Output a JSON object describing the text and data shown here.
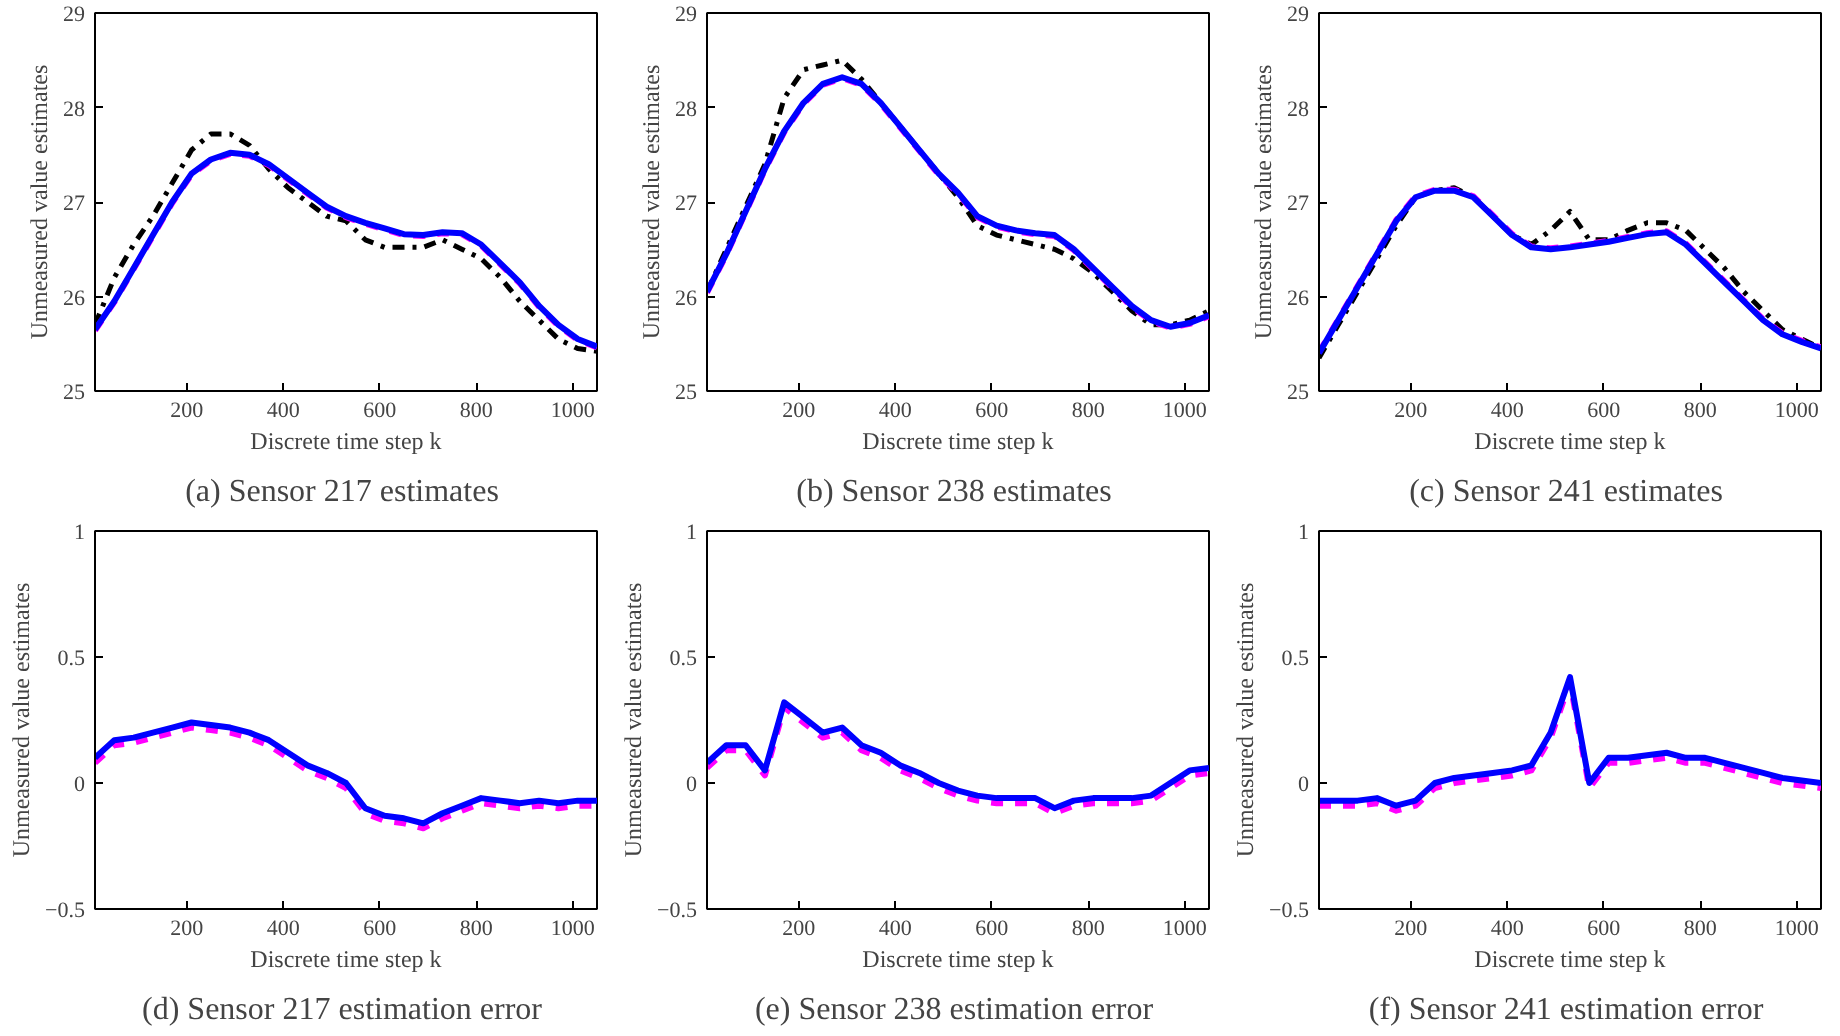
{
  "chart_data": [
    {
      "type": "line",
      "title": "(a)  Sensor 217 estimates",
      "xlabel": "Discrete time step k",
      "ylabel": "Unmeasured value estimates",
      "x": [
        10,
        50,
        90,
        130,
        170,
        210,
        250,
        290,
        330,
        370,
        410,
        450,
        490,
        530,
        570,
        610,
        650,
        690,
        730,
        770,
        810,
        850,
        890,
        930,
        970,
        1010,
        1050
      ],
      "xlim": [
        10,
        1050
      ],
      "xticks": [
        200,
        400,
        600,
        800,
        1000
      ],
      "ylim": [
        25,
        29
      ],
      "yticks": [
        25,
        26,
        27,
        28,
        29
      ],
      "grid": false,
      "series": [
        {
          "color": "#000000",
          "line_style": "dashdot",
          "values": [
            25.7,
            26.2,
            26.55,
            26.85,
            27.2,
            27.55,
            27.72,
            27.72,
            27.6,
            27.35,
            27.15,
            27.0,
            26.85,
            26.8,
            26.6,
            26.52,
            26.52,
            26.52,
            26.6,
            26.5,
            26.4,
            26.2,
            25.95,
            25.75,
            25.55,
            25.45,
            25.42
          ]
        },
        {
          "color": "#ff00ff",
          "line_style": "dashed",
          "values": [
            25.64,
            25.94,
            26.29,
            26.64,
            26.99,
            27.29,
            27.44,
            27.51,
            27.49,
            27.39,
            27.24,
            27.09,
            26.94,
            26.84,
            26.77,
            26.71,
            26.65,
            26.64,
            26.67,
            26.66,
            26.54,
            26.34,
            26.14,
            25.89,
            25.69,
            25.54,
            25.46
          ]
        },
        {
          "color": "#0000ff",
          "line_style": "solid",
          "values": [
            25.65,
            25.95,
            26.3,
            26.65,
            27.0,
            27.3,
            27.45,
            27.52,
            27.5,
            27.4,
            27.25,
            27.1,
            26.95,
            26.85,
            26.78,
            26.72,
            26.66,
            26.65,
            26.68,
            26.67,
            26.55,
            26.35,
            26.15,
            25.9,
            25.7,
            25.55,
            25.47
          ]
        }
      ]
    },
    {
      "type": "line",
      "title": "(b)  Sensor 238 estimates",
      "xlabel": "Discrete time step k",
      "ylabel": "Unmeasured value estimates",
      "x": [
        10,
        50,
        90,
        130,
        170,
        210,
        250,
        290,
        330,
        370,
        410,
        450,
        490,
        530,
        570,
        610,
        650,
        690,
        730,
        770,
        810,
        850,
        890,
        930,
        970,
        1010,
        1050
      ],
      "xlim": [
        10,
        1050
      ],
      "xticks": [
        200,
        400,
        600,
        800,
        1000
      ],
      "ylim": [
        25,
        29
      ],
      "yticks": [
        25,
        26,
        27,
        28,
        29
      ],
      "grid": false,
      "series": [
        {
          "color": "#000000",
          "line_style": "dashdot",
          "values": [
            26.05,
            26.5,
            26.95,
            27.4,
            28.1,
            28.4,
            28.45,
            28.5,
            28.3,
            28.05,
            27.8,
            27.55,
            27.3,
            27.05,
            26.75,
            26.65,
            26.6,
            26.55,
            26.5,
            26.4,
            26.25,
            26.05,
            25.85,
            25.7,
            25.7,
            25.75,
            25.85
          ]
        },
        {
          "color": "#ff00ff",
          "line_style": "dashed",
          "values": [
            26.04,
            26.44,
            26.89,
            27.34,
            27.74,
            28.04,
            28.24,
            28.31,
            28.24,
            28.04,
            27.79,
            27.54,
            27.29,
            27.09,
            26.84,
            26.74,
            26.69,
            26.66,
            26.64,
            26.49,
            26.29,
            26.09,
            25.89,
            25.74,
            25.67,
            25.71,
            25.79
          ]
        },
        {
          "color": "#0000ff",
          "line_style": "solid",
          "values": [
            26.05,
            26.45,
            26.9,
            27.35,
            27.75,
            28.05,
            28.25,
            28.32,
            28.25,
            28.05,
            27.8,
            27.55,
            27.3,
            27.1,
            26.85,
            26.75,
            26.7,
            26.67,
            26.65,
            26.5,
            26.3,
            26.1,
            25.9,
            25.75,
            25.68,
            25.72,
            25.8
          ]
        }
      ]
    },
    {
      "type": "line",
      "title": "(c)  Sensor 241 estimates",
      "xlabel": "Discrete time step k",
      "ylabel": "Unmeasured value estimates",
      "x": [
        10,
        50,
        90,
        130,
        170,
        210,
        250,
        290,
        330,
        370,
        410,
        450,
        490,
        530,
        570,
        610,
        650,
        690,
        730,
        770,
        810,
        850,
        890,
        930,
        970,
        1010,
        1050
      ],
      "xlim": [
        10,
        1050
      ],
      "xticks": [
        200,
        400,
        600,
        800,
        1000
      ],
      "ylim": [
        25,
        29
      ],
      "yticks": [
        25,
        26,
        27,
        28,
        29
      ],
      "grid": false,
      "series": [
        {
          "color": "#000000",
          "line_style": "dashdot",
          "values": [
            25.35,
            25.7,
            26.05,
            26.4,
            26.75,
            27.05,
            27.12,
            27.15,
            27.05,
            26.85,
            26.65,
            26.55,
            26.7,
            26.9,
            26.6,
            26.6,
            26.7,
            26.78,
            26.78,
            26.7,
            26.5,
            26.3,
            26.05,
            25.85,
            25.65,
            25.55,
            25.45
          ]
        },
        {
          "color": "#ff00ff",
          "line_style": "dashed",
          "values": [
            25.41,
            25.76,
            26.11,
            26.46,
            26.81,
            27.06,
            27.13,
            27.13,
            27.06,
            26.86,
            26.66,
            26.53,
            26.51,
            26.53,
            26.56,
            26.59,
            26.63,
            26.67,
            26.69,
            26.56,
            26.36,
            26.16,
            25.96,
            25.76,
            25.61,
            25.53,
            25.46
          ]
        },
        {
          "color": "#0000ff",
          "line_style": "solid",
          "values": [
            25.4,
            25.75,
            26.1,
            26.45,
            26.8,
            27.05,
            27.12,
            27.12,
            27.05,
            26.85,
            26.65,
            26.52,
            26.5,
            26.52,
            26.55,
            26.58,
            26.62,
            26.66,
            26.68,
            26.55,
            26.35,
            26.15,
            25.95,
            25.75,
            25.6,
            25.52,
            25.45
          ]
        }
      ]
    },
    {
      "type": "line",
      "title": "(d)  Sensor 217 estimation error",
      "xlabel": "Discrete time step k",
      "ylabel": "Unmeasured value estimates",
      "x": [
        10,
        50,
        90,
        130,
        170,
        210,
        250,
        290,
        330,
        370,
        410,
        450,
        490,
        530,
        570,
        610,
        650,
        690,
        730,
        770,
        810,
        850,
        890,
        930,
        970,
        1010,
        1050
      ],
      "xlim": [
        10,
        1050
      ],
      "xticks": [
        200,
        400,
        600,
        800,
        1000
      ],
      "ylim": [
        -0.5,
        1
      ],
      "yticks": [
        -0.5,
        0,
        0.5,
        1
      ],
      "grid": false,
      "series": [
        {
          "color": "#ff00ff",
          "line_style": "dashed",
          "values": [
            0.08,
            0.15,
            0.16,
            0.18,
            0.2,
            0.22,
            0.21,
            0.2,
            0.18,
            0.15,
            0.1,
            0.05,
            0.02,
            -0.02,
            -0.12,
            -0.15,
            -0.16,
            -0.18,
            -0.14,
            -0.11,
            -0.08,
            -0.09,
            -0.1,
            -0.09,
            -0.1,
            -0.09,
            -0.09
          ]
        },
        {
          "color": "#0000ff",
          "line_style": "solid",
          "values": [
            0.1,
            0.17,
            0.18,
            0.2,
            0.22,
            0.24,
            0.23,
            0.22,
            0.2,
            0.17,
            0.12,
            0.07,
            0.04,
            0.0,
            -0.1,
            -0.13,
            -0.14,
            -0.16,
            -0.12,
            -0.09,
            -0.06,
            -0.07,
            -0.08,
            -0.07,
            -0.08,
            -0.07,
            -0.07
          ]
        }
      ]
    },
    {
      "type": "line",
      "title": "(e)  Sensor 238 estimation error",
      "xlabel": "Discrete time step k",
      "ylabel": "Unmeasured value estimates",
      "x": [
        10,
        50,
        90,
        130,
        170,
        210,
        250,
        290,
        330,
        370,
        410,
        450,
        490,
        530,
        570,
        610,
        650,
        690,
        730,
        770,
        810,
        850,
        890,
        930,
        970,
        1010,
        1050
      ],
      "xlim": [
        10,
        1050
      ],
      "xticks": [
        200,
        400,
        600,
        800,
        1000
      ],
      "ylim": [
        -0.5,
        1
      ],
      "yticks": [
        -0.5,
        0,
        0.5,
        1
      ],
      "grid": false,
      "series": [
        {
          "color": "#ff00ff",
          "line_style": "dashed",
          "values": [
            0.06,
            0.13,
            0.13,
            0.03,
            0.3,
            0.24,
            0.18,
            0.2,
            0.13,
            0.1,
            0.05,
            0.02,
            -0.02,
            -0.05,
            -0.07,
            -0.08,
            -0.08,
            -0.08,
            -0.12,
            -0.09,
            -0.08,
            -0.08,
            -0.08,
            -0.07,
            -0.02,
            0.03,
            0.04
          ]
        },
        {
          "color": "#0000ff",
          "line_style": "solid",
          "values": [
            0.08,
            0.15,
            0.15,
            0.05,
            0.32,
            0.26,
            0.2,
            0.22,
            0.15,
            0.12,
            0.07,
            0.04,
            0.0,
            -0.03,
            -0.05,
            -0.06,
            -0.06,
            -0.06,
            -0.1,
            -0.07,
            -0.06,
            -0.06,
            -0.06,
            -0.05,
            0.0,
            0.05,
            0.06
          ]
        }
      ]
    },
    {
      "type": "line",
      "title": "(f)  Sensor 241 estimation error",
      "xlabel": "Discrete time step k",
      "ylabel": "Unmeasured value estimates",
      "x": [
        10,
        50,
        90,
        130,
        170,
        210,
        250,
        290,
        330,
        370,
        410,
        450,
        490,
        530,
        570,
        610,
        650,
        690,
        730,
        770,
        810,
        850,
        890,
        930,
        970,
        1010,
        1050
      ],
      "xlim": [
        10,
        1050
      ],
      "xticks": [
        200,
        400,
        600,
        800,
        1000
      ],
      "ylim": [
        -0.5,
        1
      ],
      "yticks": [
        -0.5,
        0,
        0.5,
        1
      ],
      "grid": false,
      "series": [
        {
          "color": "#ff00ff",
          "line_style": "dashed",
          "values": [
            -0.09,
            -0.09,
            -0.09,
            -0.08,
            -0.11,
            -0.09,
            -0.02,
            0.0,
            0.01,
            0.02,
            0.03,
            0.05,
            0.18,
            0.4,
            -0.02,
            0.08,
            0.08,
            0.09,
            0.1,
            0.08,
            0.08,
            0.06,
            0.04,
            0.02,
            0.0,
            -0.01,
            -0.02
          ]
        },
        {
          "color": "#0000ff",
          "line_style": "solid",
          "values": [
            -0.07,
            -0.07,
            -0.07,
            -0.06,
            -0.09,
            -0.07,
            0.0,
            0.02,
            0.03,
            0.04,
            0.05,
            0.07,
            0.2,
            0.42,
            0.0,
            0.1,
            0.1,
            0.11,
            0.12,
            0.1,
            0.1,
            0.08,
            0.06,
            0.04,
            0.02,
            0.01,
            0.0
          ]
        }
      ]
    }
  ]
}
